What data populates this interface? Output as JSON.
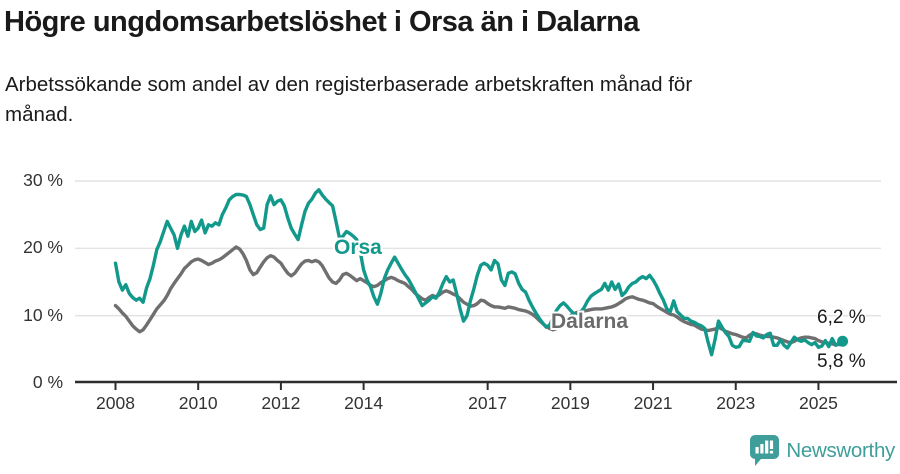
{
  "header": {
    "title": "Högre ungdomsarbetslöshet i Orsa än i Dalarna",
    "subtitle_lines": [
      "Arbetssökande som andel av den registerbaserade arbetskraften månad för",
      "månad."
    ]
  },
  "logo": {
    "brand": "Newsworthy",
    "color": "#3f9e99",
    "icon": "speech-bubble-bar-chart"
  },
  "chart_data": {
    "type": "line",
    "title": "Högre ungdomsarbetslöshet i Orsa än i Dalarna",
    "xlabel": "",
    "ylabel": "",
    "x_start_year": 2008.0,
    "x_step_years": 0.08333,
    "xlim": [
      2008.0,
      2025.67
    ],
    "ylim": [
      0,
      32
    ],
    "grid": "horizontal",
    "legend_position": "inline-labels",
    "x_ticks": [
      {
        "label": "2008",
        "year": 2008
      },
      {
        "label": "2010",
        "year": 2010
      },
      {
        "label": "2012",
        "year": 2012
      },
      {
        "label": "2014",
        "year": 2014
      },
      {
        "label": "2017",
        "year": 2017
      },
      {
        "label": "2019",
        "year": 2019
      },
      {
        "label": "2021",
        "year": 2021
      },
      {
        "label": "2023",
        "year": 2023
      },
      {
        "label": "2025",
        "year": 2025
      }
    ],
    "y_ticks": [
      {
        "label": "30 %",
        "value": 30
      },
      {
        "label": "20 %",
        "value": 20
      },
      {
        "label": "10 %",
        "value": 10
      },
      {
        "label": "0 %",
        "value": 0
      }
    ],
    "end_labels": [
      {
        "series": "Orsa",
        "text": "6,2 %",
        "value": 6.2
      },
      {
        "series": "Dalarna",
        "text": "5,8 %",
        "value": 5.8
      }
    ],
    "end_dot_series": "Orsa",
    "series": [
      {
        "name": "Dalarna",
        "color": "#6f6f6f",
        "values": [
          11.5,
          11.0,
          10.4,
          9.9,
          9.2,
          8.5,
          8.0,
          7.6,
          7.9,
          8.6,
          9.4,
          10.2,
          11.0,
          11.6,
          12.2,
          13.0,
          14.0,
          14.8,
          15.5,
          16.2,
          17.0,
          17.5,
          18.0,
          18.3,
          18.4,
          18.2,
          17.9,
          17.6,
          17.8,
          18.1,
          18.3,
          18.6,
          19.0,
          19.4,
          19.8,
          20.2,
          19.9,
          19.2,
          18.2,
          16.8,
          16.1,
          16.4,
          17.2,
          18.0,
          18.6,
          18.9,
          18.7,
          18.2,
          17.8,
          17.0,
          16.3,
          15.9,
          16.3,
          17.0,
          17.7,
          18.1,
          18.2,
          18.0,
          18.2,
          18.0,
          17.4,
          16.5,
          15.6,
          15.0,
          14.8,
          15.3,
          16.1,
          16.3,
          16.0,
          15.6,
          15.2,
          15.5,
          15.2,
          14.9,
          14.5,
          14.3,
          14.5,
          14.9,
          15.2,
          15.5,
          15.7,
          15.5,
          15.2,
          15.0,
          14.8,
          14.3,
          13.9,
          13.3,
          12.9,
          12.5,
          12.3,
          12.7,
          13.0,
          12.8,
          13.1,
          13.5,
          13.7,
          13.5,
          13.2,
          13.0,
          12.5,
          12.0,
          11.7,
          11.4,
          11.5,
          11.8,
          12.3,
          12.2,
          11.8,
          11.5,
          11.3,
          11.3,
          11.2,
          11.1,
          11.3,
          11.2,
          11.1,
          10.9,
          10.8,
          10.7,
          10.5,
          10.2,
          9.8,
          9.3,
          8.8,
          8.4,
          8.1,
          7.9,
          8.1,
          8.6,
          9.1,
          9.6,
          10.0,
          10.3,
          10.5,
          10.6,
          10.7,
          10.8,
          10.9,
          11.0,
          11.0,
          11.0,
          11.1,
          11.2,
          11.3,
          11.5,
          11.8,
          12.1,
          12.5,
          12.7,
          12.8,
          12.6,
          12.4,
          12.3,
          12.1,
          11.9,
          11.8,
          11.4,
          11.1,
          10.8,
          10.5,
          10.2,
          10.1,
          9.8,
          9.4,
          9.1,
          8.9,
          8.7,
          8.6,
          8.3,
          8.0,
          7.9,
          7.8,
          7.9,
          8.0,
          8.3,
          8.0,
          7.7,
          7.5,
          7.3,
          7.2,
          7.0,
          6.8,
          6.7,
          7.1,
          7.4,
          7.3,
          7.1,
          7.0,
          6.9,
          6.9,
          6.8,
          6.7,
          6.5,
          6.3,
          6.1,
          6.0,
          6.2,
          6.5,
          6.7,
          6.8,
          6.8,
          6.7,
          6.6,
          6.3,
          6.1,
          6.0,
          5.9,
          5.8,
          5.7,
          5.7,
          5.8
        ]
      },
      {
        "name": "Orsa",
        "color": "#13998c",
        "values": [
          17.8,
          15.0,
          13.8,
          14.6,
          13.3,
          12.7,
          12.3,
          12.6,
          12.0,
          14.1,
          15.5,
          17.5,
          19.8,
          21.0,
          22.5,
          24.0,
          23.0,
          22.0,
          20.0,
          22.0,
          23.3,
          21.8,
          24.0,
          22.5,
          23.0,
          24.2,
          22.3,
          23.5,
          23.3,
          23.8,
          23.5,
          25.0,
          26.0,
          27.2,
          27.7,
          28.0,
          28.0,
          27.9,
          27.7,
          26.5,
          25.0,
          23.5,
          22.8,
          23.0,
          26.5,
          27.8,
          26.5,
          27.0,
          27.2,
          26.3,
          24.5,
          23.0,
          22.1,
          21.3,
          23.5,
          25.5,
          26.7,
          27.3,
          28.2,
          28.7,
          27.9,
          27.3,
          26.8,
          26.3,
          24.0,
          21.5,
          21.8,
          22.5,
          22.2,
          21.8,
          21.3,
          19.5,
          16.8,
          15.3,
          14.3,
          12.8,
          11.7,
          13.3,
          15.5,
          16.8,
          17.8,
          18.7,
          17.8,
          16.9,
          16.1,
          15.4,
          14.5,
          13.5,
          12.5,
          11.5,
          11.9,
          12.3,
          12.8,
          12.6,
          13.5,
          14.8,
          15.8,
          15.0,
          15.3,
          13.3,
          11.0,
          9.2,
          10.0,
          12.2,
          14.0,
          16.0,
          17.5,
          17.8,
          17.5,
          16.8,
          18.2,
          17.7,
          15.3,
          14.5,
          16.3,
          16.5,
          16.2,
          14.8,
          13.9,
          13.5,
          12.3,
          11.3,
          10.4,
          9.6,
          8.9,
          8.3,
          8.6,
          9.8,
          10.8,
          11.5,
          11.9,
          11.4,
          10.8,
          10.3,
          9.9,
          10.5,
          11.2,
          12.2,
          12.9,
          13.3,
          13.6,
          13.9,
          14.8,
          13.8,
          15.0,
          13.9,
          14.7,
          13.0,
          13.5,
          14.3,
          14.8,
          15.0,
          15.5,
          15.8,
          15.5,
          16.0,
          15.3,
          14.4,
          13.3,
          12.3,
          11.0,
          10.6,
          12.2,
          10.6,
          10.1,
          9.6,
          9.6,
          9.2,
          9.0,
          8.7,
          8.5,
          8.1,
          6.0,
          4.2,
          6.5,
          9.2,
          8.3,
          7.5,
          6.9,
          5.6,
          5.3,
          5.4,
          6.3,
          6.3,
          6.2,
          7.5,
          7.0,
          6.9,
          6.7,
          7.2,
          7.4,
          5.6,
          5.6,
          6.4,
          5.6,
          5.2,
          6.0,
          6.8,
          6.4,
          6.2,
          6.4,
          6.0,
          5.7,
          6.0,
          5.3,
          5.5,
          6.3,
          5.4,
          6.6,
          5.6,
          5.9,
          6.2
        ]
      }
    ]
  }
}
